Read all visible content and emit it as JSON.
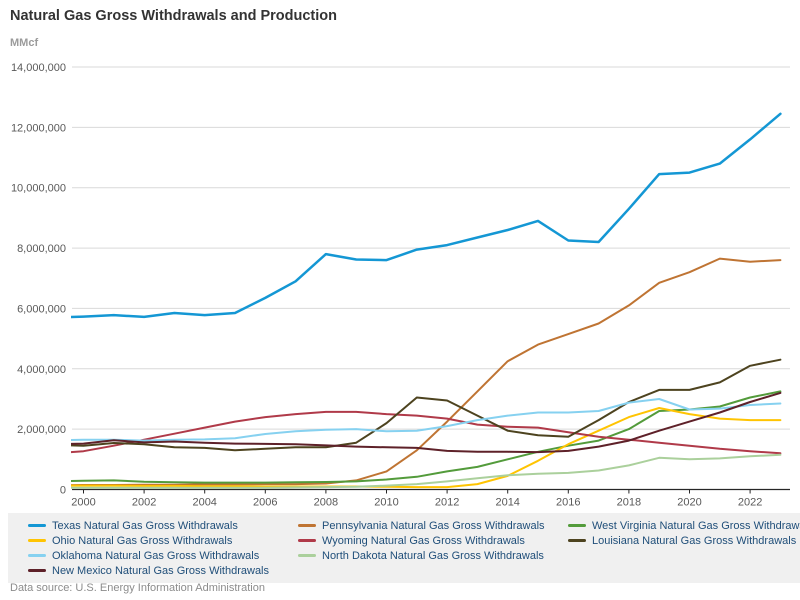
{
  "header": {
    "title": "Natural Gas Gross Withdrawals and Production",
    "units": "MMcf"
  },
  "footer": {
    "datasource": "Data source: U.S. Energy Information Administration"
  },
  "legend": {
    "rows": [
      [
        0,
        1,
        2
      ],
      [
        3,
        4,
        5
      ],
      [
        6,
        7
      ],
      [
        8
      ]
    ]
  },
  "chart_data": {
    "type": "line",
    "title": "Natural Gas Gross Withdrawals and Production",
    "ylabel": "MMcf",
    "xlabel": "",
    "grid": "horizontal",
    "legend_position": "bottom",
    "ylim": [
      0,
      14000000
    ],
    "y_ticks": [
      0,
      2000000,
      4000000,
      6000000,
      8000000,
      10000000,
      12000000,
      14000000
    ],
    "x_tick_years": [
      2000,
      2002,
      2004,
      2006,
      2008,
      2010,
      2012,
      2014,
      2016,
      2018,
      2020,
      2022
    ],
    "years": [
      1999,
      2000,
      2001,
      2002,
      2003,
      2004,
      2005,
      2006,
      2007,
      2008,
      2009,
      2010,
      2011,
      2012,
      2013,
      2014,
      2015,
      2016,
      2017,
      2018,
      2019,
      2020,
      2021,
      2022,
      2023
    ],
    "series": [
      {
        "name": "Texas Natural Gas Gross Withdrawals",
        "color": "#1497d4",
        "values": [
          5700000,
          5730000,
          5780000,
          5720000,
          5850000,
          5780000,
          5850000,
          6350000,
          6900000,
          7800000,
          7620000,
          7600000,
          7950000,
          8100000,
          8350000,
          8600000,
          8900000,
          8250000,
          8200000,
          9300000,
          10450000,
          10500000,
          10800000,
          11600000,
          12450000
        ]
      },
      {
        "name": "Pennsylvania Natural Gas Gross Withdrawals",
        "color": "#bf7433",
        "values": [
          140000,
          150000,
          150000,
          160000,
          160000,
          170000,
          170000,
          180000,
          180000,
          200000,
          300000,
          600000,
          1300000,
          2250000,
          3250000,
          4250000,
          4800000,
          5150000,
          5500000,
          6100000,
          6850000,
          7200000,
          7650000,
          7550000,
          7600000
        ]
      },
      {
        "name": "West Virginia Natural Gas Gross Withdrawals",
        "color": "#539b3b",
        "values": [
          270000,
          290000,
          300000,
          260000,
          240000,
          230000,
          230000,
          230000,
          240000,
          250000,
          270000,
          330000,
          420000,
          600000,
          750000,
          1000000,
          1250000,
          1450000,
          1620000,
          2000000,
          2600000,
          2650000,
          2750000,
          3050000,
          3250000
        ]
      },
      {
        "name": "Ohio Natural Gas Gross Withdrawals",
        "color": "#ffc402",
        "values": [
          130000,
          130000,
          130000,
          120000,
          120000,
          110000,
          110000,
          100000,
          100000,
          100000,
          100000,
          90000,
          80000,
          80000,
          180000,
          450000,
          950000,
          1500000,
          1950000,
          2400000,
          2700000,
          2500000,
          2350000,
          2300000,
          2300000
        ]
      },
      {
        "name": "Wyoming Natural Gas Gross Withdrawals",
        "color": "#b03a49",
        "values": [
          1200000,
          1270000,
          1450000,
          1650000,
          1850000,
          2050000,
          2250000,
          2400000,
          2500000,
          2570000,
          2570000,
          2500000,
          2450000,
          2350000,
          2150000,
          2080000,
          2050000,
          1900000,
          1750000,
          1650000,
          1550000,
          1450000,
          1350000,
          1270000,
          1200000
        ]
      },
      {
        "name": "Louisiana Natural Gas Gross Withdrawals",
        "color": "#4d431f",
        "values": [
          1480000,
          1450000,
          1540000,
          1500000,
          1400000,
          1380000,
          1300000,
          1350000,
          1400000,
          1400000,
          1550000,
          2200000,
          3050000,
          2950000,
          2450000,
          1950000,
          1800000,
          1750000,
          2300000,
          2900000,
          3300000,
          3300000,
          3550000,
          4100000,
          4300000
        ]
      },
      {
        "name": "Oklahoma Natural Gas Gross Withdrawals",
        "color": "#86d1f0",
        "values": [
          1630000,
          1650000,
          1650000,
          1620000,
          1650000,
          1660000,
          1700000,
          1840000,
          1930000,
          1980000,
          2000000,
          1930000,
          1950000,
          2100000,
          2300000,
          2450000,
          2550000,
          2550000,
          2600000,
          2880000,
          3000000,
          2650000,
          2680000,
          2800000,
          2850000
        ]
      },
      {
        "name": "North Dakota Natural Gas Gross Withdrawals",
        "color": "#abd09c",
        "values": [
          60000,
          60000,
          60000,
          60000,
          60000,
          60000,
          60000,
          60000,
          70000,
          80000,
          90000,
          130000,
          180000,
          270000,
          370000,
          470000,
          520000,
          550000,
          630000,
          800000,
          1050000,
          1000000,
          1030000,
          1100000,
          1150000
        ]
      },
      {
        "name": "New Mexico Natural Gas Gross Withdrawals",
        "color": "#5e2129",
        "values": [
          1500000,
          1520000,
          1630000,
          1560000,
          1590000,
          1550000,
          1520000,
          1510000,
          1500000,
          1460000,
          1420000,
          1400000,
          1380000,
          1280000,
          1250000,
          1250000,
          1240000,
          1280000,
          1420000,
          1620000,
          1950000,
          2250000,
          2550000,
          2900000,
          3200000
        ]
      }
    ]
  }
}
